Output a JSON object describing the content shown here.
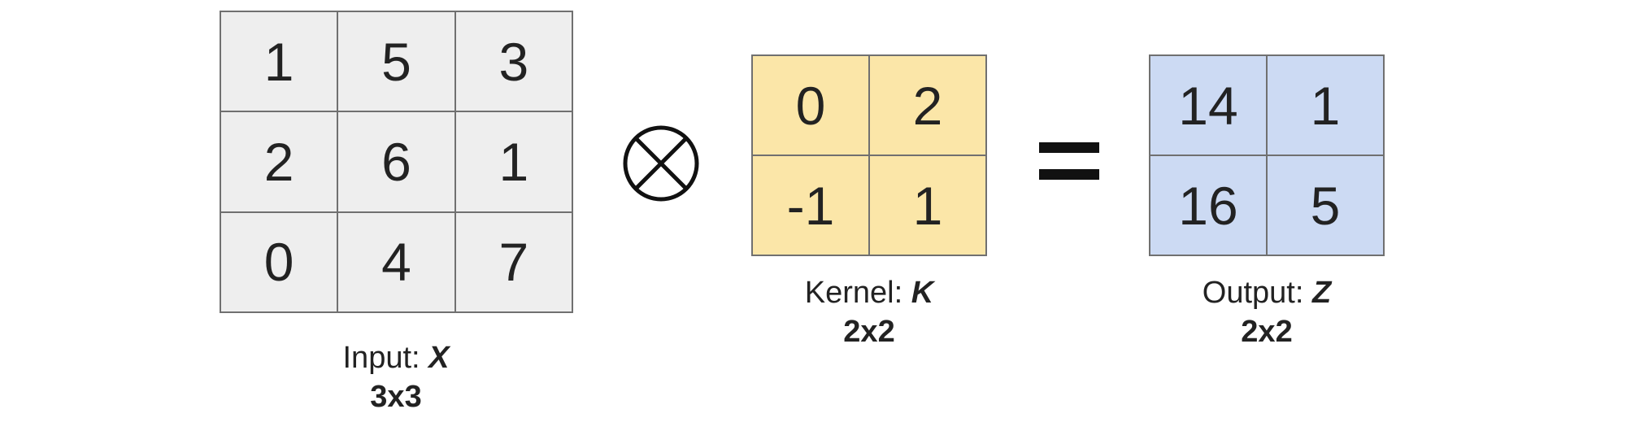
{
  "colors": {
    "input_fill": "#eeeeee",
    "kernel_fill": "#fbe6a8",
    "output_fill": "#ccdaf3",
    "border": "#707070",
    "text": "#222222"
  },
  "input": {
    "label": "Input: ",
    "symbol": "X",
    "dims": "3x3",
    "cells": [
      "1",
      "5",
      "3",
      "2",
      "6",
      "1",
      "0",
      "4",
      "7"
    ]
  },
  "operator": {
    "icon": "circled-times-icon"
  },
  "kernel": {
    "label": "Kernel: ",
    "symbol": "K",
    "dims": "2x2",
    "cells": [
      "0",
      "2",
      "-1",
      "1"
    ]
  },
  "equals": {
    "icon": "equals-icon"
  },
  "output": {
    "label": "Output: ",
    "symbol": "Z",
    "dims": "2x2",
    "cells": [
      "14",
      "1",
      "16",
      "5"
    ]
  }
}
